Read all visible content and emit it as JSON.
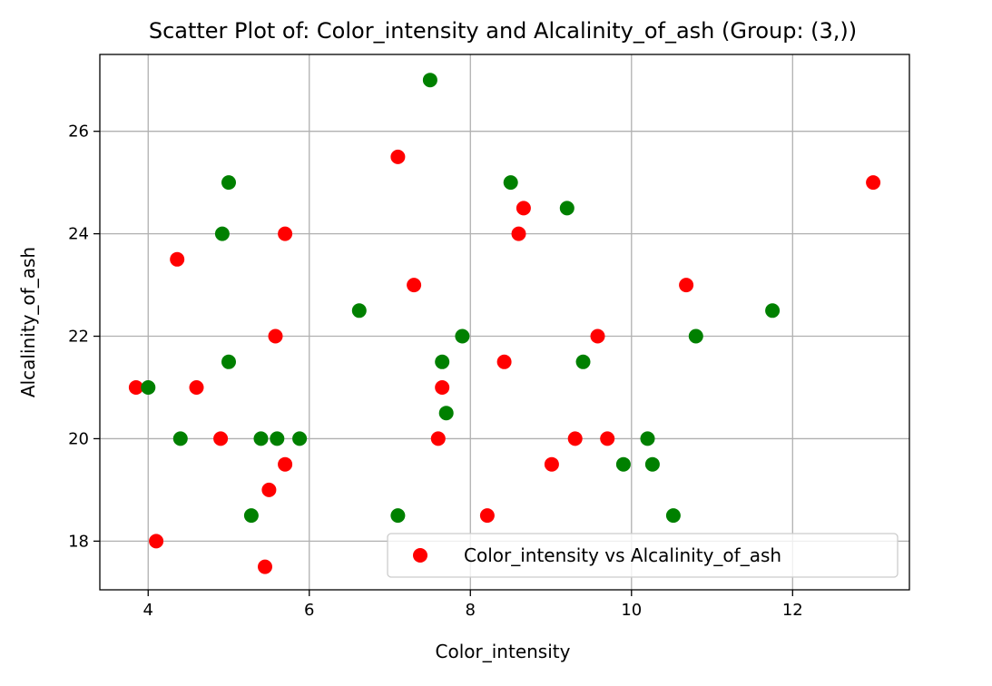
{
  "chart_data": {
    "type": "scatter",
    "title": "Scatter Plot of: Color_intensity and Alcalinity_of_ash (Group: (3,))",
    "xlabel": "Color_intensity",
    "ylabel": "Alcalinity_of_ash",
    "xlim": [
      3.4,
      13.45
    ],
    "ylim": [
      17.05,
      27.5
    ],
    "xticks": [
      4,
      6,
      8,
      10,
      12
    ],
    "yticks": [
      18,
      20,
      22,
      24,
      26
    ],
    "grid": true,
    "legend": {
      "placement": "lower-right",
      "entries": [
        "Color_intensity vs Alcalinity_of_ash"
      ]
    },
    "series": [
      {
        "name": "Color_intensity vs Alcalinity_of_ash",
        "color": "#ff0000",
        "points": [
          [
            3.85,
            21.0
          ],
          [
            4.1,
            18.0
          ],
          [
            4.36,
            23.5
          ],
          [
            4.6,
            21.0
          ],
          [
            4.9,
            20.0
          ],
          [
            5.45,
            17.5
          ],
          [
            5.5,
            19.0
          ],
          [
            5.58,
            22.0
          ],
          [
            5.7,
            24.0
          ],
          [
            5.7,
            19.5
          ],
          [
            7.1,
            25.5
          ],
          [
            7.3,
            23.0
          ],
          [
            7.6,
            20.0
          ],
          [
            7.65,
            21.0
          ],
          [
            8.21,
            18.5
          ],
          [
            8.42,
            21.5
          ],
          [
            8.6,
            24.0
          ],
          [
            8.66,
            24.5
          ],
          [
            9.01,
            19.5
          ],
          [
            9.3,
            20.0
          ],
          [
            9.58,
            22.0
          ],
          [
            9.7,
            20.0
          ],
          [
            10.68,
            23.0
          ],
          [
            13.0,
            25.0
          ]
        ]
      },
      {
        "color": "#008000",
        "points": [
          [
            4.0,
            21.0
          ],
          [
            4.4,
            20.0
          ],
          [
            4.92,
            24.0
          ],
          [
            5.0,
            25.0
          ],
          [
            5.0,
            21.5
          ],
          [
            5.28,
            18.5
          ],
          [
            5.4,
            20.0
          ],
          [
            5.6,
            20.0
          ],
          [
            5.88,
            20.0
          ],
          [
            6.62,
            22.5
          ],
          [
            7.1,
            18.5
          ],
          [
            7.5,
            27.0
          ],
          [
            7.65,
            21.5
          ],
          [
            7.7,
            20.5
          ],
          [
            7.9,
            22.0
          ],
          [
            8.5,
            25.0
          ],
          [
            9.2,
            24.5
          ],
          [
            9.4,
            21.5
          ],
          [
            9.9,
            19.5
          ],
          [
            10.2,
            20.0
          ],
          [
            10.26,
            19.5
          ],
          [
            10.52,
            18.5
          ],
          [
            10.8,
            22.0
          ],
          [
            11.75,
            22.5
          ]
        ]
      }
    ]
  }
}
